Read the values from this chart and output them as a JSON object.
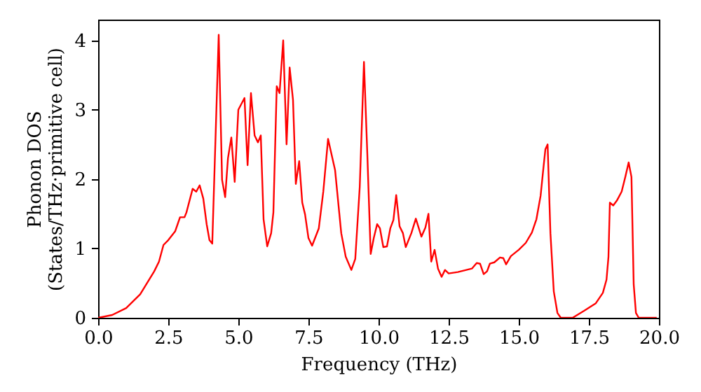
{
  "chart_data": {
    "type": "line",
    "xlabel": "Frequency (THz)",
    "ylabel": "Phonon DOS\n(States/THz·primitive cell)",
    "xlim": [
      0,
      20
    ],
    "ylim": [
      0,
      4.3
    ],
    "xticks": [
      {
        "value": 0,
        "label": "0.0"
      },
      {
        "value": 2.5,
        "label": "2.5"
      },
      {
        "value": 5,
        "label": "5.0"
      },
      {
        "value": 7.5,
        "label": "7.5"
      },
      {
        "value": 10,
        "label": "10.0"
      },
      {
        "value": 12.5,
        "label": "12.5"
      },
      {
        "value": 15,
        "label": "15.0"
      },
      {
        "value": 17.5,
        "label": "17.5"
      },
      {
        "value": 20,
        "label": "20.0"
      }
    ],
    "yticks": [
      0,
      1,
      2,
      3,
      4
    ],
    "series": [
      {
        "color": "#ff0000",
        "x": [
          0,
          0.5,
          1.0,
          1.5,
          2.0,
          2.17,
          2.33,
          2.5,
          2.75,
          2.92,
          3.08,
          3.15,
          3.37,
          3.5,
          3.62,
          3.75,
          3.87,
          3.97,
          4.07,
          4.3,
          4.42,
          4.53,
          4.63,
          4.75,
          4.87,
          5.0,
          5.22,
          5.33,
          5.45,
          5.58,
          5.7,
          5.8,
          5.9,
          6.03,
          6.17,
          6.25,
          6.37,
          6.47,
          6.6,
          6.72,
          6.83,
          6.95,
          7.05,
          7.17,
          7.28,
          7.38,
          7.5,
          7.63,
          7.87,
          8.03,
          8.2,
          8.45,
          8.67,
          8.83,
          9.03,
          9.17,
          9.33,
          9.48,
          9.6,
          9.72,
          9.83,
          9.95,
          10.05,
          10.17,
          10.3,
          10.42,
          10.53,
          10.63,
          10.75,
          10.87,
          10.97,
          11.17,
          11.33,
          11.53,
          11.67,
          11.78,
          11.88,
          12.0,
          12.12,
          12.25,
          12.37,
          12.5,
          12.83,
          13.33,
          13.5,
          13.62,
          13.75,
          13.87,
          13.97,
          14.13,
          14.33,
          14.45,
          14.55,
          14.72,
          15.0,
          15.25,
          15.47,
          15.63,
          15.78,
          15.88,
          15.95,
          16.03,
          16.13,
          16.25,
          16.38,
          16.5,
          16.92,
          17.33,
          17.75,
          18.0,
          18.13,
          18.2,
          18.25,
          18.37,
          18.5,
          18.67,
          18.8,
          18.92,
          19.02,
          19.1,
          19.18,
          19.28,
          19.92
        ],
        "values": [
          0,
          0.04,
          0.14,
          0.34,
          0.67,
          0.81,
          1.05,
          1.12,
          1.25,
          1.45,
          1.45,
          1.52,
          1.86,
          1.82,
          1.91,
          1.72,
          1.35,
          1.12,
          1.07,
          4.08,
          1.99,
          1.74,
          2.3,
          2.6,
          1.96,
          3.0,
          3.17,
          2.2,
          3.24,
          2.63,
          2.53,
          2.63,
          1.42,
          1.03,
          1.22,
          1.52,
          3.34,
          3.24,
          4.0,
          2.5,
          3.61,
          3.14,
          1.93,
          2.26,
          1.66,
          1.49,
          1.15,
          1.04,
          1.29,
          1.82,
          2.58,
          2.13,
          1.22,
          0.88,
          0.69,
          0.85,
          1.89,
          3.69,
          2.36,
          0.92,
          1.15,
          1.35,
          1.29,
          1.02,
          1.03,
          1.29,
          1.41,
          1.77,
          1.32,
          1.22,
          1.02,
          1.22,
          1.43,
          1.17,
          1.3,
          1.5,
          0.81,
          0.98,
          0.71,
          0.59,
          0.69,
          0.64,
          0.66,
          0.71,
          0.79,
          0.78,
          0.63,
          0.67,
          0.78,
          0.8,
          0.87,
          0.86,
          0.77,
          0.89,
          0.98,
          1.08,
          1.23,
          1.42,
          1.76,
          2.16,
          2.43,
          2.5,
          1.22,
          0.38,
          0.07,
          0,
          0,
          0.1,
          0.21,
          0.36,
          0.55,
          0.88,
          1.66,
          1.62,
          1.69,
          1.82,
          2.03,
          2.24,
          2.03,
          0.48,
          0.07,
          0,
          0
        ]
      }
    ]
  }
}
